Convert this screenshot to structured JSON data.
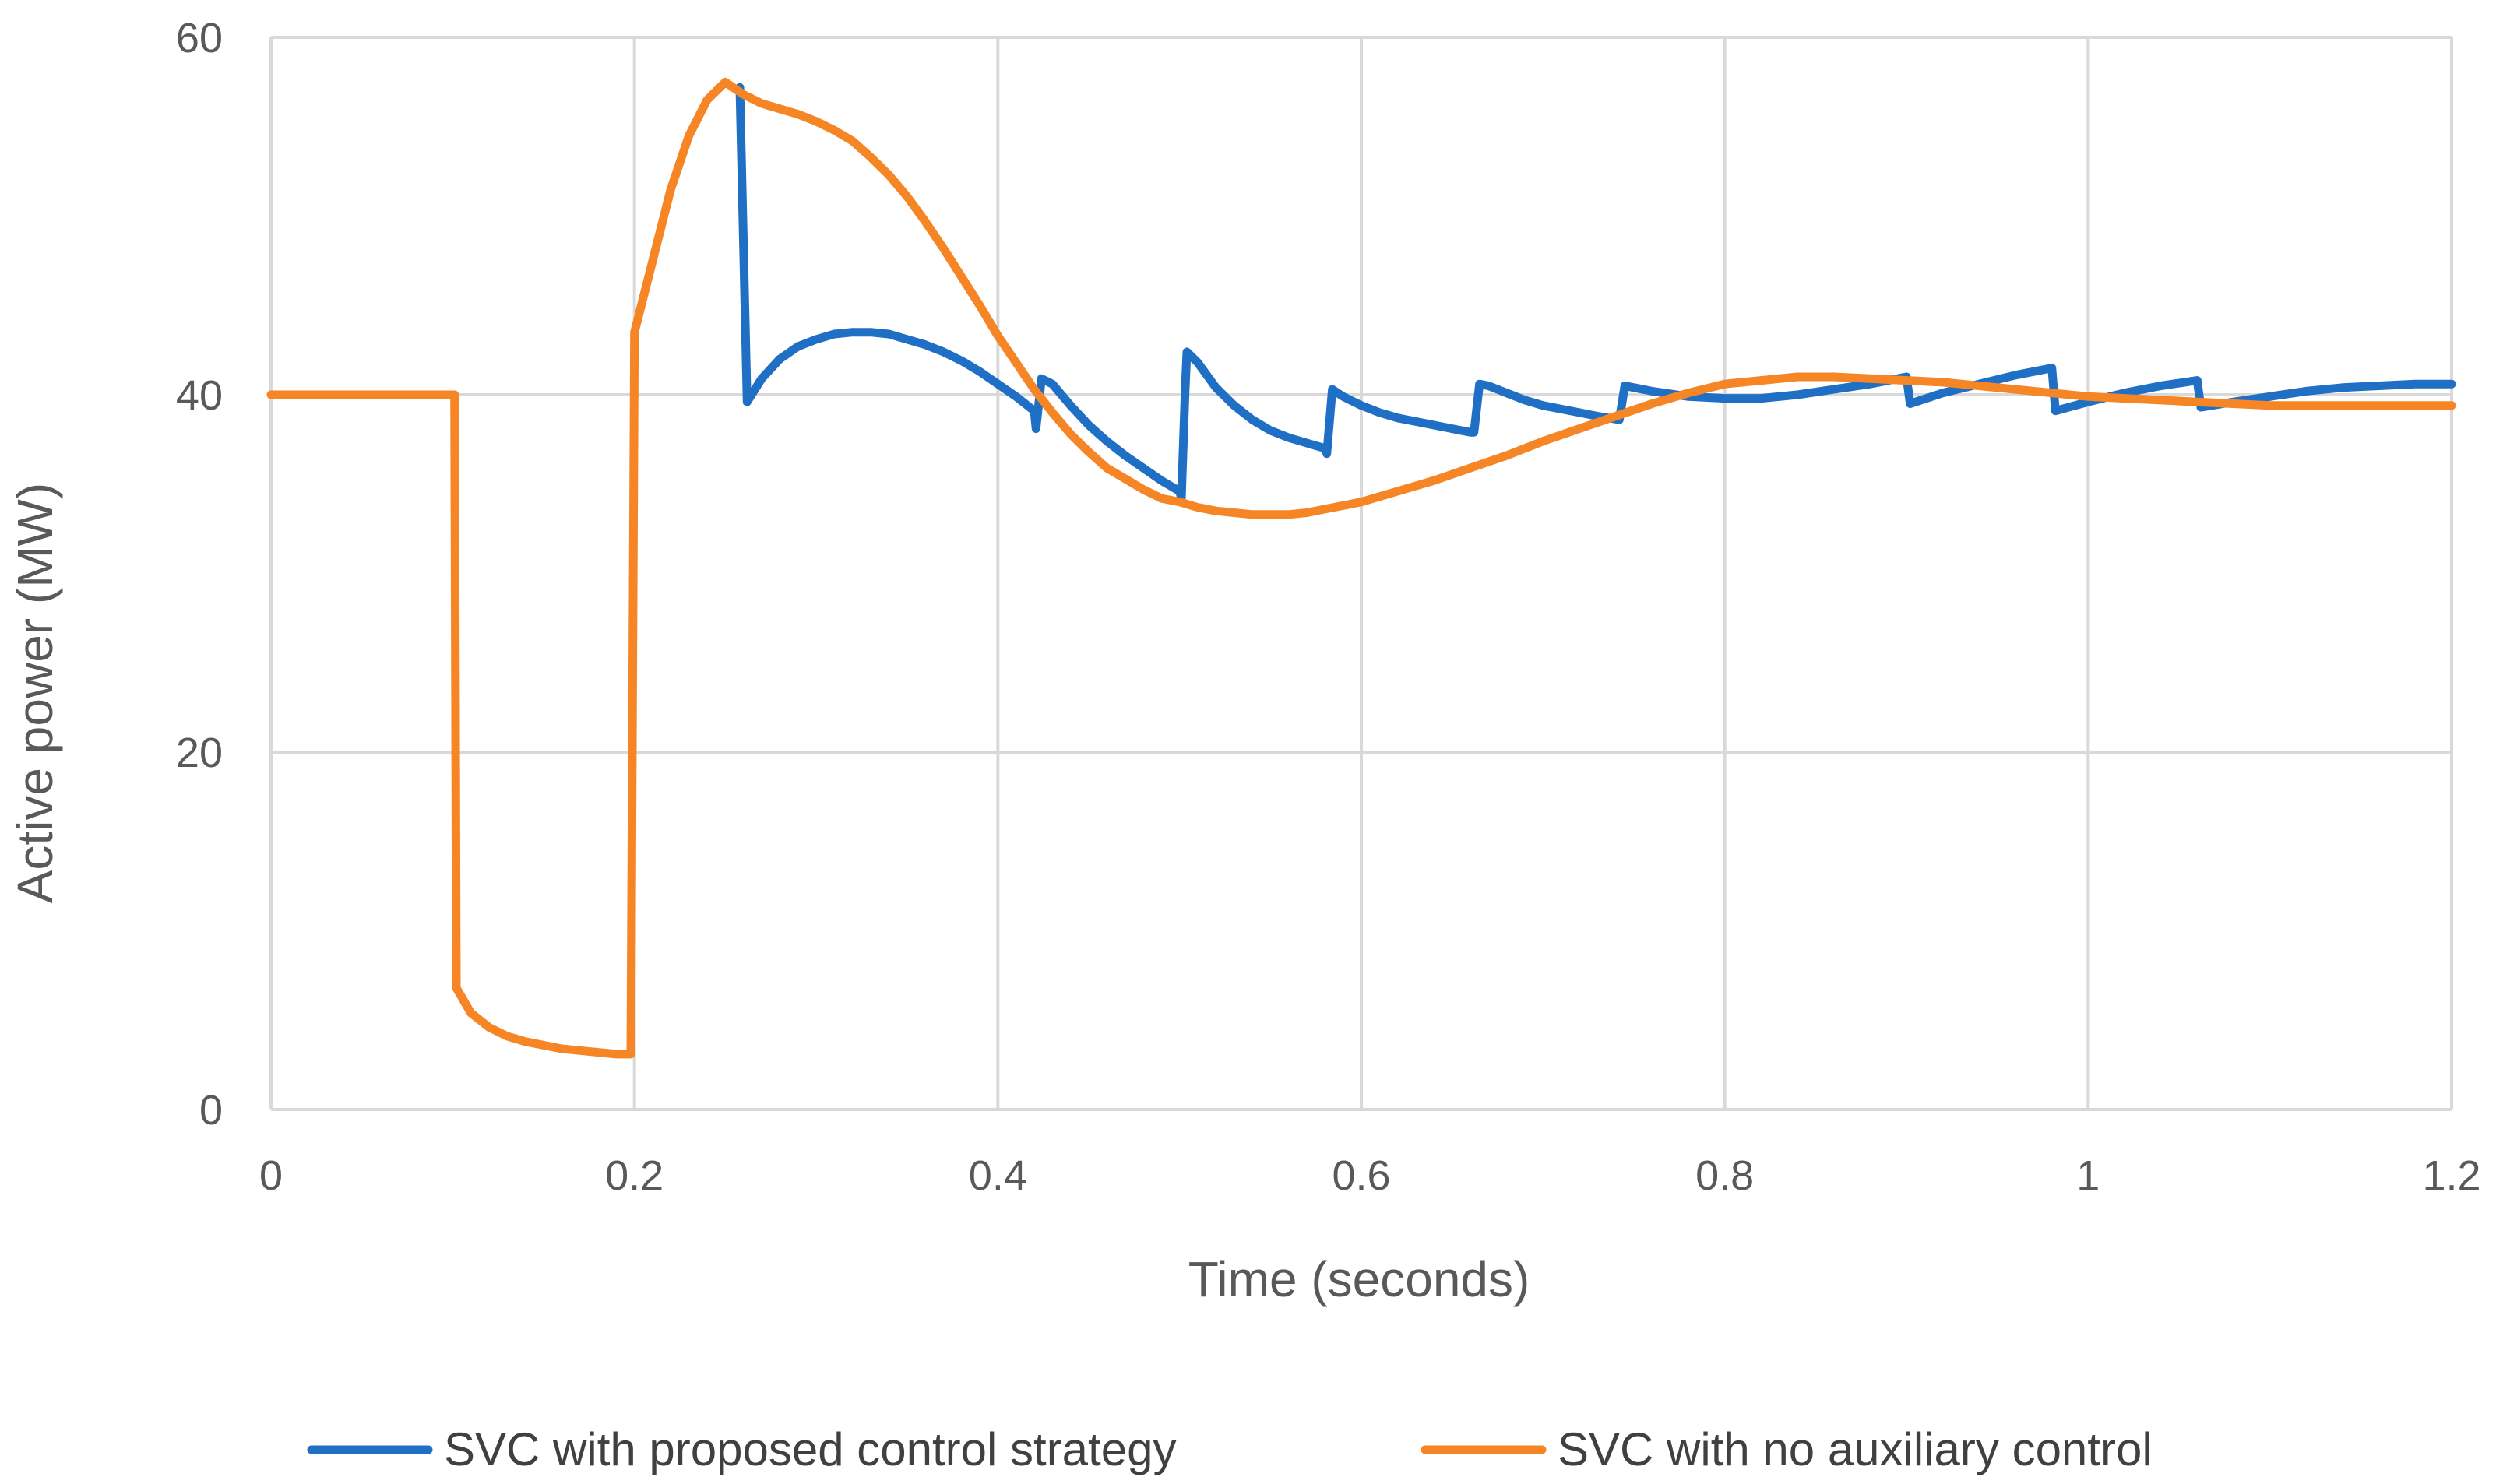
{
  "chart_data": {
    "type": "line",
    "title": "",
    "xlabel": "Time (seconds)",
    "ylabel": "Active power (MW)",
    "xlim": [
      0,
      1.2
    ],
    "ylim": [
      0,
      60
    ],
    "xticks": [
      0,
      0.2,
      0.4,
      0.6,
      0.8,
      1,
      1.2
    ],
    "xtick_labels": [
      "0",
      "0.2",
      "0.4",
      "0.6",
      "0.8",
      "1",
      "1.2"
    ],
    "yticks": [
      0,
      20,
      40,
      60
    ],
    "ytick_labels": [
      "0",
      "20",
      "40",
      "60"
    ],
    "grid": true,
    "legend_position": "bottom",
    "series": [
      {
        "name": "SVC with proposed control strategy",
        "color": "#1f6fc5",
        "points": [
          [
            0.258,
            57.2
          ],
          [
            0.262,
            39.6
          ],
          [
            0.27,
            40.9
          ],
          [
            0.28,
            42.0
          ],
          [
            0.29,
            42.7
          ],
          [
            0.3,
            43.1
          ],
          [
            0.31,
            43.4
          ],
          [
            0.32,
            43.5
          ],
          [
            0.33,
            43.5
          ],
          [
            0.34,
            43.4
          ],
          [
            0.35,
            43.1
          ],
          [
            0.36,
            42.8
          ],
          [
            0.37,
            42.4
          ],
          [
            0.38,
            41.9
          ],
          [
            0.39,
            41.3
          ],
          [
            0.4,
            40.6
          ],
          [
            0.41,
            39.9
          ],
          [
            0.42,
            39.1
          ],
          [
            0.421,
            38.1
          ],
          [
            0.424,
            40.9
          ],
          [
            0.43,
            40.6
          ],
          [
            0.44,
            39.4
          ],
          [
            0.45,
            38.3
          ],
          [
            0.46,
            37.4
          ],
          [
            0.47,
            36.6
          ],
          [
            0.48,
            35.9
          ],
          [
            0.49,
            35.2
          ],
          [
            0.5,
            34.6
          ],
          [
            0.501,
            34.2
          ],
          [
            0.503,
            40.1
          ],
          [
            0.504,
            42.4
          ],
          [
            0.51,
            41.8
          ],
          [
            0.52,
            40.4
          ],
          [
            0.53,
            39.4
          ],
          [
            0.54,
            38.6
          ],
          [
            0.55,
            38.0
          ],
          [
            0.56,
            37.6
          ],
          [
            0.57,
            37.3
          ],
          [
            0.58,
            37.0
          ],
          [
            0.581,
            36.7
          ],
          [
            0.584,
            40.3
          ],
          [
            0.59,
            39.9
          ],
          [
            0.6,
            39.4
          ],
          [
            0.61,
            39.0
          ],
          [
            0.62,
            38.7
          ],
          [
            0.63,
            38.5
          ],
          [
            0.64,
            38.3
          ],
          [
            0.65,
            38.1
          ],
          [
            0.66,
            37.9
          ],
          [
            0.662,
            37.9
          ],
          [
            0.665,
            40.6
          ],
          [
            0.67,
            40.5
          ],
          [
            0.68,
            40.1
          ],
          [
            0.69,
            39.7
          ],
          [
            0.7,
            39.4
          ],
          [
            0.71,
            39.2
          ],
          [
            0.72,
            39.0
          ],
          [
            0.73,
            38.8
          ],
          [
            0.742,
            38.6
          ],
          [
            0.745,
            40.5
          ],
          [
            0.75,
            40.4
          ],
          [
            0.76,
            40.2
          ],
          [
            0.78,
            39.9
          ],
          [
            0.8,
            39.8
          ],
          [
            0.82,
            39.8
          ],
          [
            0.84,
            40.0
          ],
          [
            0.86,
            40.3
          ],
          [
            0.88,
            40.6
          ],
          [
            0.9,
            41.0
          ],
          [
            0.902,
            39.5
          ],
          [
            0.92,
            40.1
          ],
          [
            0.94,
            40.6
          ],
          [
            0.96,
            41.1
          ],
          [
            0.98,
            41.5
          ],
          [
            0.982,
            39.1
          ],
          [
            1.0,
            39.6
          ],
          [
            1.02,
            40.1
          ],
          [
            1.04,
            40.5
          ],
          [
            1.06,
            40.8
          ],
          [
            1.062,
            39.3
          ],
          [
            1.08,
            39.6
          ],
          [
            1.1,
            39.9
          ],
          [
            1.12,
            40.2
          ],
          [
            1.14,
            40.4
          ],
          [
            1.16,
            40.5
          ],
          [
            1.18,
            40.6
          ],
          [
            1.2,
            40.6
          ]
        ]
      },
      {
        "name": "SVC with no auxiliary control",
        "color": "#f58525",
        "points": [
          [
            0.0,
            40.0
          ],
          [
            0.1,
            40.0
          ],
          [
            0.101,
            40.0
          ],
          [
            0.102,
            6.8
          ],
          [
            0.11,
            5.4
          ],
          [
            0.12,
            4.6
          ],
          [
            0.13,
            4.1
          ],
          [
            0.14,
            3.8
          ],
          [
            0.15,
            3.6
          ],
          [
            0.16,
            3.4
          ],
          [
            0.17,
            3.3
          ],
          [
            0.18,
            3.2
          ],
          [
            0.19,
            3.1
          ],
          [
            0.198,
            3.1
          ],
          [
            0.2,
            43.5
          ],
          [
            0.21,
            47.5
          ],
          [
            0.22,
            51.5
          ],
          [
            0.23,
            54.5
          ],
          [
            0.24,
            56.5
          ],
          [
            0.25,
            57.5
          ],
          [
            0.26,
            56.8
          ],
          [
            0.27,
            56.3
          ],
          [
            0.28,
            56.0
          ],
          [
            0.29,
            55.7
          ],
          [
            0.3,
            55.3
          ],
          [
            0.31,
            54.8
          ],
          [
            0.32,
            54.2
          ],
          [
            0.33,
            53.3
          ],
          [
            0.34,
            52.3
          ],
          [
            0.35,
            51.1
          ],
          [
            0.36,
            49.7
          ],
          [
            0.37,
            48.2
          ],
          [
            0.38,
            46.6
          ],
          [
            0.39,
            45.0
          ],
          [
            0.4,
            43.3
          ],
          [
            0.41,
            41.8
          ],
          [
            0.42,
            40.3
          ],
          [
            0.43,
            39.0
          ],
          [
            0.44,
            37.8
          ],
          [
            0.45,
            36.8
          ],
          [
            0.46,
            35.9
          ],
          [
            0.47,
            35.3
          ],
          [
            0.48,
            34.7
          ],
          [
            0.49,
            34.2
          ],
          [
            0.5,
            34.0
          ],
          [
            0.51,
            33.7
          ],
          [
            0.52,
            33.5
          ],
          [
            0.53,
            33.4
          ],
          [
            0.54,
            33.3
          ],
          [
            0.55,
            33.3
          ],
          [
            0.56,
            33.3
          ],
          [
            0.57,
            33.4
          ],
          [
            0.58,
            33.6
          ],
          [
            0.59,
            33.8
          ],
          [
            0.6,
            34.0
          ],
          [
            0.62,
            34.6
          ],
          [
            0.64,
            35.2
          ],
          [
            0.66,
            35.9
          ],
          [
            0.68,
            36.6
          ],
          [
            0.7,
            37.4
          ],
          [
            0.72,
            38.1
          ],
          [
            0.74,
            38.8
          ],
          [
            0.76,
            39.5
          ],
          [
            0.78,
            40.1
          ],
          [
            0.8,
            40.6
          ],
          [
            0.82,
            40.8
          ],
          [
            0.84,
            41.0
          ],
          [
            0.86,
            41.0
          ],
          [
            0.88,
            40.9
          ],
          [
            0.9,
            40.8
          ],
          [
            0.92,
            40.7
          ],
          [
            0.94,
            40.5
          ],
          [
            0.96,
            40.3
          ],
          [
            0.98,
            40.1
          ],
          [
            1.0,
            39.9
          ],
          [
            1.02,
            39.8
          ],
          [
            1.04,
            39.7
          ],
          [
            1.06,
            39.6
          ],
          [
            1.08,
            39.5
          ],
          [
            1.1,
            39.4
          ],
          [
            1.12,
            39.4
          ],
          [
            1.14,
            39.4
          ],
          [
            1.16,
            39.4
          ],
          [
            1.18,
            39.4
          ],
          [
            1.2,
            39.4
          ]
        ]
      }
    ]
  }
}
